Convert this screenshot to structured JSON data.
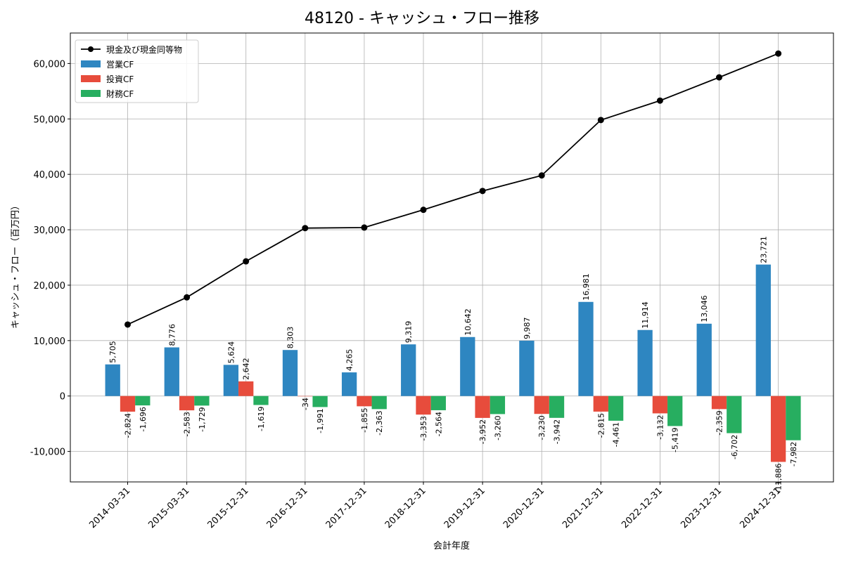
{
  "chart_data": {
    "type": "bar",
    "title": "48120 - キャッシュ・フロー推移",
    "xlabel": "会計年度",
    "ylabel": "キャッシュ・フロー（百万円）",
    "ylim": [
      -15500,
      65500
    ],
    "yticks": [
      -10000,
      0,
      10000,
      20000,
      30000,
      40000,
      50000,
      60000
    ],
    "ytick_labels": [
      "-10,000",
      "0",
      "10,000",
      "20,000",
      "30,000",
      "40,000",
      "50,000",
      "60,000"
    ],
    "grid": true,
    "legend_position": "top-left",
    "categories": [
      "2014-03-31",
      "2015-03-31",
      "2015-12-31",
      "2016-12-31",
      "2017-12-31",
      "2018-12-31",
      "2019-12-31",
      "2020-12-31",
      "2021-12-31",
      "2022-12-31",
      "2023-12-31",
      "2024-12-31"
    ],
    "series": [
      {
        "name": "営業CF",
        "kind": "bar",
        "color": "#2e86c1",
        "values": [
          5705,
          8776,
          5624,
          8303,
          4265,
          9319,
          10642,
          9987,
          16981,
          11914,
          13046,
          23721
        ],
        "labels": [
          "5,705",
          "8,776",
          "5,624",
          "8,303",
          "4,265",
          "9,319",
          "10,642",
          "9,987",
          "16,981",
          "11,914",
          "13,046",
          "23,721"
        ]
      },
      {
        "name": "投資CF",
        "kind": "bar",
        "color": "#e74c3c",
        "values": [
          -2824,
          -2583,
          2642,
          -34,
          -1855,
          -3353,
          -3952,
          -3230,
          -2815,
          -3132,
          -2359,
          -11886
        ],
        "labels": [
          "-2,824",
          "-2,583",
          "2,642",
          "-34",
          "-1,855",
          "-3,353",
          "-3,952",
          "-3,230",
          "-2,815",
          "-3,132",
          "-2,359",
          "-11,886"
        ]
      },
      {
        "name": "財務CF",
        "kind": "bar",
        "color": "#27ae60",
        "values": [
          -1696,
          -1729,
          -1619,
          -1991,
          -2363,
          -2564,
          -3260,
          -3942,
          -4461,
          -5419,
          -6702,
          -7982
        ],
        "labels": [
          "-1,696",
          "-1,729",
          "-1,619",
          "-1,991",
          "-2,363",
          "-2,564",
          "-3,260",
          "-3,942",
          "-4,461",
          "-5,419",
          "-6,702",
          "-7,982"
        ]
      },
      {
        "name": "現金及び現金同等物",
        "kind": "line",
        "color": "#000000",
        "values": [
          12900,
          17800,
          24300,
          30300,
          30400,
          33600,
          37000,
          39800,
          49800,
          53300,
          57500,
          61800
        ]
      }
    ]
  }
}
